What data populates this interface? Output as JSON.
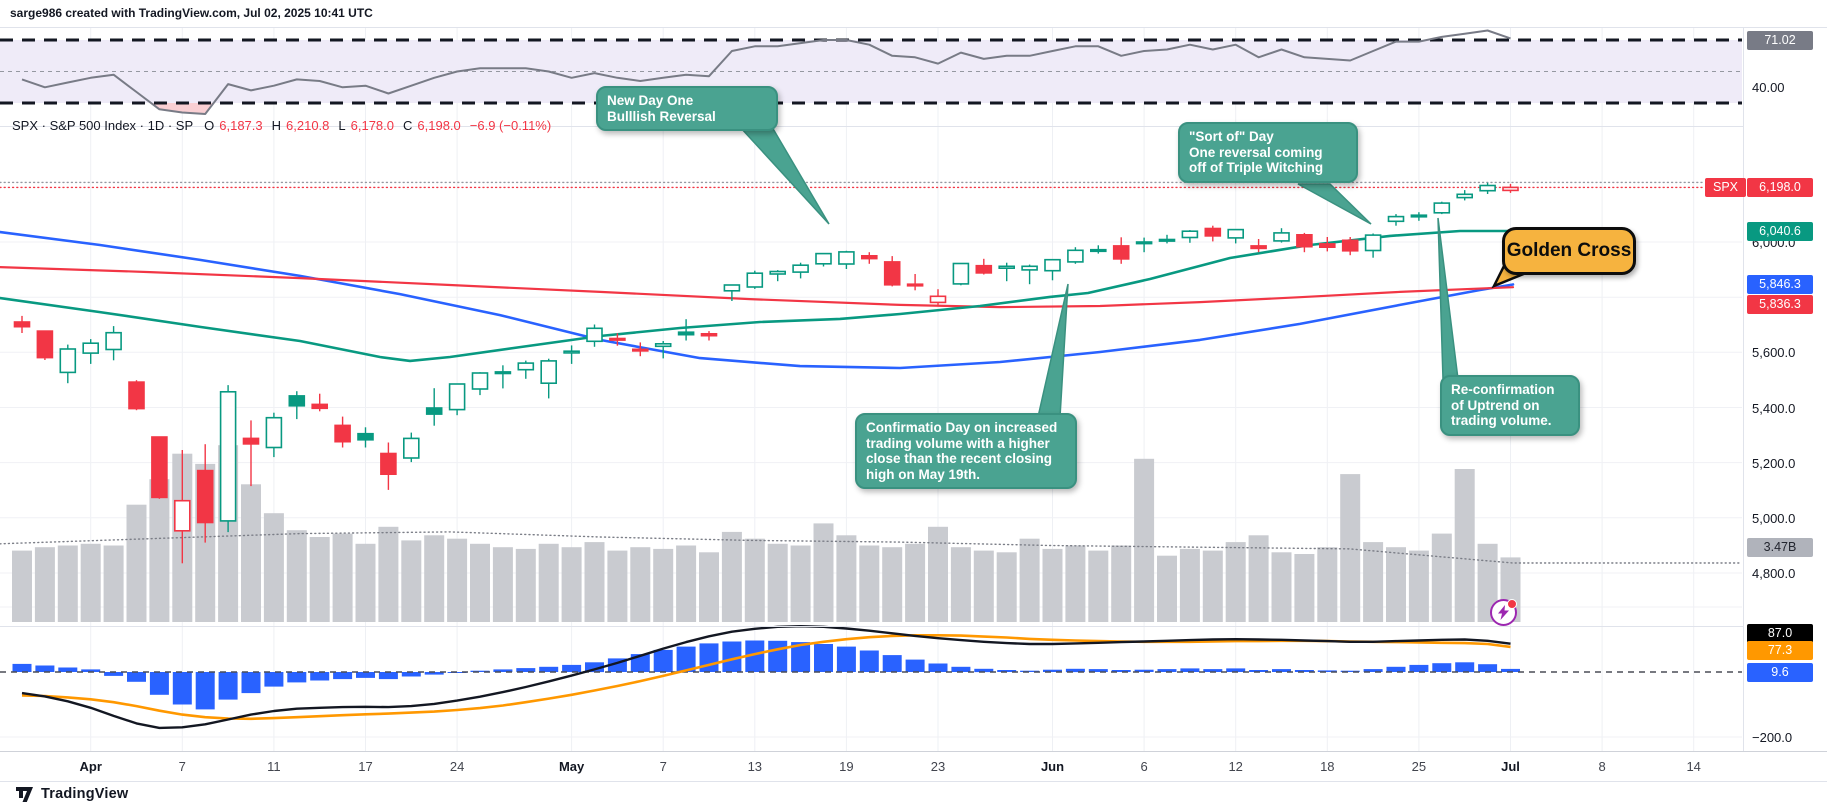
{
  "header": {
    "attribution": "sarge986 created with TradingView.com, Jul 02, 2025 10:41 UTC"
  },
  "legend": {
    "symbol": "SPX · S&P 500 Index · 1D · SP",
    "o_label": "O",
    "o": "6,187.3",
    "h_label": "H",
    "h": "6,210.8",
    "l_label": "L",
    "l": "6,178.0",
    "c_label": "C",
    "c": "6,198.0",
    "change": "−6.9 (−0.11%)"
  },
  "rsi_pane": {
    "value_badge": "71.02",
    "level_label": "40.00",
    "badge_color": "#787B86"
  },
  "price_axis": {
    "symbol_badge": {
      "name": "SPX",
      "value": "6,198.0",
      "color": "#F23645"
    },
    "ma_badges": [
      {
        "value": "6,040.6",
        "color": "#089981",
        "price": 6040.6
      },
      {
        "value": "5,846.3",
        "color": "#2962FF",
        "price": 5846.3
      },
      {
        "value": "5,836.3",
        "color": "#F23645",
        "price": 5836.3
      }
    ],
    "volume_badge": {
      "value": "3.47B",
      "color": "#b0b3bb",
      "text_color": "#23262f"
    },
    "labels": [
      {
        "text": "6,000.0",
        "price": 6000
      },
      {
        "text": "5,600.0",
        "price": 5600
      },
      {
        "text": "5,400.0",
        "price": 5400
      },
      {
        "text": "5,200.0",
        "price": 5200
      },
      {
        "text": "5,000.0",
        "price": 5000
      },
      {
        "text": "4,800.0",
        "price": 4800
      }
    ]
  },
  "macd_axis": {
    "badges": [
      {
        "value": "87.0",
        "color": "#000000"
      },
      {
        "value": "77.3",
        "color": "#FF9800"
      },
      {
        "value": "9.6",
        "color": "#2962FF"
      }
    ],
    "level_label": "−200.0"
  },
  "annotations": {
    "callout1": {
      "text": "New Day One\nBulllish Reversal"
    },
    "callout2": {
      "text": "\"Sort of\" Day\nOne reversal coming\noff of Triple Witching"
    },
    "callout3": {
      "text": "Confirmatio Day on increased\ntrading volume with a higher\nclose than the recent closing\nhigh on May 19th."
    },
    "callout4": {
      "text": "Re-confirmation\nof Uptrend on\ntrading volume."
    },
    "golden_cross": {
      "text": "Golden Cross",
      "color": "#F6B33F"
    }
  },
  "footer": {
    "brand": "TradingView"
  },
  "chart_data": {
    "type": "candlestick",
    "title": "SPX S&P 500 Index daily chart with RSI, moving averages, volume and MACD",
    "colors": {
      "up": "#089981",
      "down": "#F23645",
      "ma_fast": "#089981",
      "ma_mid": "#2962FF",
      "ma_slow": "#F23645",
      "rsi_line": "#787B86",
      "volume_bar": "#c9cbd0",
      "macd_line": "#131722",
      "macd_signal": "#FF9800",
      "macd_hist": "#2962FF",
      "rsi_band_fill": "#efebf8",
      "rsi_oversold_fill": "#f9cfd3"
    },
    "price_axis_range_visible": [
      4800,
      6000
    ],
    "rsi_levels": [
      70,
      50,
      30
    ],
    "rsi_last": 71.02,
    "macd_level_label": -200,
    "price_lines": [
      {
        "price": 6216,
        "color": "#9598A1",
        "style": "dotted"
      },
      {
        "price": 6198,
        "color": "#F23645",
        "style": "dotted"
      }
    ],
    "candles": [
      [
        "Mar 27",
        5710,
        5732,
        5670,
        5693
      ],
      [
        "Mar 28",
        5677,
        5677,
        5572,
        5581
      ],
      [
        "Mar 31",
        5527,
        5628,
        5488,
        5612
      ],
      [
        "Apr 1",
        5597,
        5648,
        5558,
        5633
      ],
      [
        "Apr 2",
        5610,
        5695,
        5571,
        5671
      ],
      [
        "Apr 3",
        5492,
        5499,
        5390,
        5396
      ],
      [
        "Apr 4",
        5293,
        5293,
        5069,
        5074
      ],
      [
        "Apr 7",
        4953,
        5246,
        4835,
        5062
      ],
      [
        "Apr 8",
        5171,
        5267,
        4910,
        4983
      ],
      [
        "Apr 9",
        4989,
        5481,
        4948,
        5457
      ],
      [
        "Apr 10",
        5288,
        5353,
        5115,
        5268
      ],
      [
        "Apr 11",
        5255,
        5381,
        5220,
        5363
      ],
      [
        "Apr 14",
        5442,
        5459,
        5358,
        5406
      ],
      [
        "Apr 15",
        5411,
        5450,
        5386,
        5397
      ],
      [
        "Apr 16",
        5335,
        5367,
        5255,
        5276
      ],
      [
        "Apr 17",
        5305,
        5328,
        5255,
        5283
      ],
      [
        "Apr 21",
        5233,
        5273,
        5101,
        5158
      ],
      [
        "Apr 22",
        5217,
        5309,
        5202,
        5288
      ],
      [
        "Apr 23",
        5398,
        5470,
        5334,
        5376
      ],
      [
        "Apr 24",
        5392,
        5487,
        5372,
        5485
      ],
      [
        "Apr 25",
        5467,
        5528,
        5445,
        5525
      ],
      [
        "Apr 28",
        5529,
        5553,
        5469,
        5529
      ],
      [
        "Apr 29",
        5537,
        5570,
        5504,
        5561
      ],
      [
        "Apr 30",
        5488,
        5577,
        5433,
        5569
      ],
      [
        "May 1",
        5598,
        5625,
        5558,
        5604
      ],
      [
        "May 2",
        5640,
        5701,
        5620,
        5687
      ],
      [
        "May 5",
        5650,
        5669,
        5624,
        5650
      ],
      [
        "May 6",
        5611,
        5636,
        5586,
        5607
      ],
      [
        "May 7",
        5622,
        5641,
        5578,
        5631
      ],
      [
        "May 8",
        5673,
        5720,
        5643,
        5664
      ],
      [
        "May 9",
        5667,
        5677,
        5643,
        5660
      ],
      [
        "May 12",
        5823,
        5845,
        5786,
        5844
      ],
      [
        "May 13",
        5837,
        5896,
        5830,
        5887
      ],
      [
        "May 14",
        5884,
        5898,
        5858,
        5893
      ],
      [
        "May 15",
        5891,
        5925,
        5868,
        5916
      ],
      [
        "May 16",
        5921,
        5958,
        5911,
        5958
      ],
      [
        "May 19",
        5920,
        5968,
        5902,
        5964
      ],
      [
        "May 20",
        5950,
        5963,
        5921,
        5940
      ],
      [
        "May 21",
        5928,
        5949,
        5839,
        5845
      ],
      [
        "May 22",
        5847,
        5884,
        5825,
        5842
      ],
      [
        "May 23",
        5781,
        5829,
        5767,
        5803
      ],
      [
        "May 27",
        5848,
        5923,
        5843,
        5922
      ],
      [
        "May 28",
        5914,
        5939,
        5882,
        5888
      ],
      [
        "May 29",
        5905,
        5925,
        5858,
        5912
      ],
      [
        "May 30",
        5899,
        5918,
        5847,
        5912
      ],
      [
        "Jun 2",
        5896,
        5937,
        5861,
        5936
      ],
      [
        "Jun 3",
        5928,
        5981,
        5921,
        5970
      ],
      [
        "Jun 4",
        5972,
        5988,
        5958,
        5971
      ],
      [
        "Jun 5",
        5986,
        6017,
        5921,
        5939
      ],
      [
        "Jun 6",
        5996,
        6016,
        5963,
        6000
      ],
      [
        "Jun 9",
        6009,
        6026,
        5995,
        6006
      ],
      [
        "Jun 10",
        6016,
        6043,
        5997,
        6039
      ],
      [
        "Jun 11",
        6049,
        6059,
        6002,
        6022
      ],
      [
        "Jun 12",
        6015,
        6045,
        5995,
        6045
      ],
      [
        "Jun 13",
        5986,
        6011,
        5963,
        5977
      ],
      [
        "Jun 16",
        6004,
        6050,
        5998,
        6033
      ],
      [
        "Jun 17",
        6026,
        6033,
        5963,
        5983
      ],
      [
        "Jun 18",
        5993,
        6018,
        5966,
        5981
      ],
      [
        "Jun 20",
        6006,
        6018,
        5952,
        5968
      ],
      [
        "Jun 23",
        5969,
        6031,
        5943,
        6025
      ],
      [
        "Jun 24",
        6075,
        6101,
        6059,
        6092
      ],
      [
        "Jun 25",
        6097,
        6108,
        6077,
        6092
      ],
      [
        "Jun 26",
        6106,
        6146,
        6101,
        6141
      ],
      [
        "Jun 27",
        6161,
        6188,
        6151,
        6173
      ],
      [
        "Jun 30",
        6186,
        6215,
        6174,
        6205
      ],
      [
        "Jul 1",
        6187.3,
        6210.8,
        6178,
        6198
      ]
    ],
    "volume_billions": [
      4.2,
      4.4,
      4.5,
      4.6,
      4.5,
      6.9,
      8.4,
      9.9,
      9.3,
      10.4,
      8.1,
      6.4,
      5.4,
      5.0,
      5.2,
      4.6,
      5.6,
      4.8,
      5.1,
      4.9,
      4.6,
      4.4,
      4.3,
      4.6,
      4.4,
      4.7,
      4.2,
      4.4,
      4.3,
      4.5,
      4.1,
      5.3,
      4.9,
      4.6,
      4.5,
      5.8,
      5.1,
      4.5,
      4.4,
      4.6,
      5.6,
      4.4,
      4.2,
      4.1,
      4.9,
      4.3,
      4.5,
      4.2,
      4.5,
      9.6,
      3.9,
      4.3,
      4.2,
      4.7,
      5.1,
      4.1,
      4.0,
      4.4,
      8.7,
      4.7,
      4.4,
      4.2,
      5.2,
      9.0,
      4.6,
      3.8
    ],
    "volume_ma_last": 3.47,
    "volume_ma_points": [
      [
        0,
        4.6
      ],
      [
        150,
        4.9
      ],
      [
        300,
        5.2
      ],
      [
        450,
        5.3
      ],
      [
        600,
        5.0
      ],
      [
        750,
        4.8
      ],
      [
        900,
        4.7
      ],
      [
        1050,
        4.5
      ],
      [
        1200,
        4.4
      ],
      [
        1350,
        4.3
      ],
      [
        1513,
        3.47
      ],
      [
        1740,
        3.47
      ]
    ],
    "rsi": [
      45,
      40,
      43,
      46,
      48,
      37,
      26,
      24,
      23,
      42,
      38,
      41,
      45,
      44,
      40,
      41,
      36,
      41,
      46,
      50,
      52,
      52,
      52,
      50,
      46,
      49,
      46,
      44,
      46,
      48,
      47,
      63,
      66,
      66,
      68,
      70,
      70,
      67,
      60,
      59,
      55,
      62,
      58,
      60,
      60,
      63,
      66,
      66,
      60,
      63,
      64,
      67,
      64,
      67,
      59,
      64,
      59,
      58,
      57,
      63,
      69,
      69,
      72,
      74,
      76,
      71.02
    ],
    "macd_hist": [
      25,
      20,
      14,
      8,
      -12,
      -30,
      -70,
      -100,
      -115,
      -85,
      -65,
      -45,
      -32,
      -26,
      -22,
      -18,
      -22,
      -14,
      -8,
      -3,
      4,
      8,
      12,
      16,
      22,
      30,
      42,
      55,
      68,
      78,
      88,
      94,
      97,
      96,
      92,
      86,
      78,
      66,
      52,
      38,
      26,
      16,
      10,
      6,
      4,
      7,
      10,
      9,
      6,
      7,
      9,
      11,
      9,
      11,
      6,
      9,
      6,
      5,
      4,
      9,
      16,
      22,
      27,
      30,
      24,
      9.6
    ],
    "macd_line": [
      -65,
      -75,
      -90,
      -110,
      -135,
      -158,
      -172,
      -170,
      -161,
      -146,
      -131,
      -120,
      -113,
      -110,
      -108,
      -107,
      -108,
      -105,
      -98,
      -88,
      -76,
      -62,
      -46,
      -29,
      -11,
      8,
      28,
      50,
      72,
      92,
      110,
      124,
      133,
      139,
      141,
      139,
      134,
      127,
      119,
      111,
      104,
      98,
      93,
      89,
      86,
      86,
      88,
      90,
      92,
      94,
      96,
      98,
      100,
      101,
      100,
      99,
      97,
      95,
      93,
      93,
      95,
      97,
      99,
      100,
      96,
      87
    ],
    "macd_signal": [
      -72,
      -74,
      -78,
      -84,
      -93,
      -105,
      -119,
      -131,
      -139,
      -143,
      -144,
      -142,
      -139,
      -136,
      -133,
      -130,
      -128,
      -125,
      -122,
      -117,
      -111,
      -103,
      -93,
      -82,
      -70,
      -57,
      -43,
      -28,
      -12,
      5,
      22,
      39,
      55,
      70,
      83,
      93,
      101,
      107,
      111,
      113,
      113,
      112,
      109,
      106,
      102,
      99,
      97,
      95,
      94,
      93,
      93,
      93,
      94,
      95,
      95,
      96,
      96,
      95,
      94,
      93,
      92,
      91,
      90,
      89,
      86,
      77.3
    ],
    "ma_fast_points": [
      [
        0,
        5797
      ],
      [
        100,
        5746
      ],
      [
        200,
        5692
      ],
      [
        300,
        5641
      ],
      [
        380,
        5583
      ],
      [
        410,
        5569
      ],
      [
        450,
        5583
      ],
      [
        520,
        5619
      ],
      [
        600,
        5659
      ],
      [
        680,
        5688
      ],
      [
        760,
        5710
      ],
      [
        840,
        5721
      ],
      [
        900,
        5739
      ],
      [
        980,
        5768
      ],
      [
        1050,
        5801
      ],
      [
        1088,
        5815
      ],
      [
        1150,
        5866
      ],
      [
        1230,
        5942
      ],
      [
        1310,
        5989
      ],
      [
        1390,
        6022
      ],
      [
        1460,
        6040
      ],
      [
        1513,
        6040
      ]
    ],
    "ma_mid_points": [
      [
        0,
        6036
      ],
      [
        100,
        5989
      ],
      [
        200,
        5935
      ],
      [
        300,
        5877
      ],
      [
        400,
        5811
      ],
      [
        500,
        5735
      ],
      [
        600,
        5645
      ],
      [
        700,
        5579
      ],
      [
        800,
        5550
      ],
      [
        900,
        5543
      ],
      [
        1000,
        5565
      ],
      [
        1100,
        5601
      ],
      [
        1200,
        5645
      ],
      [
        1300,
        5703
      ],
      [
        1400,
        5772
      ],
      [
        1480,
        5826
      ],
      [
        1513,
        5846
      ]
    ],
    "ma_slow_points": [
      [
        0,
        5909
      ],
      [
        150,
        5891
      ],
      [
        300,
        5869
      ],
      [
        450,
        5844
      ],
      [
        600,
        5819
      ],
      [
        750,
        5793
      ],
      [
        900,
        5772
      ],
      [
        1000,
        5764
      ],
      [
        1100,
        5768
      ],
      [
        1200,
        5782
      ],
      [
        1300,
        5800
      ],
      [
        1400,
        5819
      ],
      [
        1513,
        5836
      ]
    ],
    "time_ticks": [
      {
        "label": "Apr",
        "i": 3,
        "major": true
      },
      {
        "label": "7",
        "i": 7
      },
      {
        "label": "11",
        "i": 11
      },
      {
        "label": "17",
        "i": 15
      },
      {
        "label": "24",
        "i": 19
      },
      {
        "label": "May",
        "i": 24,
        "major": true
      },
      {
        "label": "7",
        "i": 28
      },
      {
        "label": "13",
        "i": 32
      },
      {
        "label": "19",
        "i": 36
      },
      {
        "label": "23",
        "i": 40
      },
      {
        "label": "Jun",
        "i": 45,
        "major": true
      },
      {
        "label": "6",
        "i": 49
      },
      {
        "label": "12",
        "i": 53
      },
      {
        "label": "18",
        "i": 57
      },
      {
        "label": "25",
        "i": 61
      },
      {
        "label": "Jul",
        "i": 65,
        "major": true
      },
      {
        "label": "8",
        "i": 69
      },
      {
        "label": "14",
        "i": 73
      }
    ]
  }
}
